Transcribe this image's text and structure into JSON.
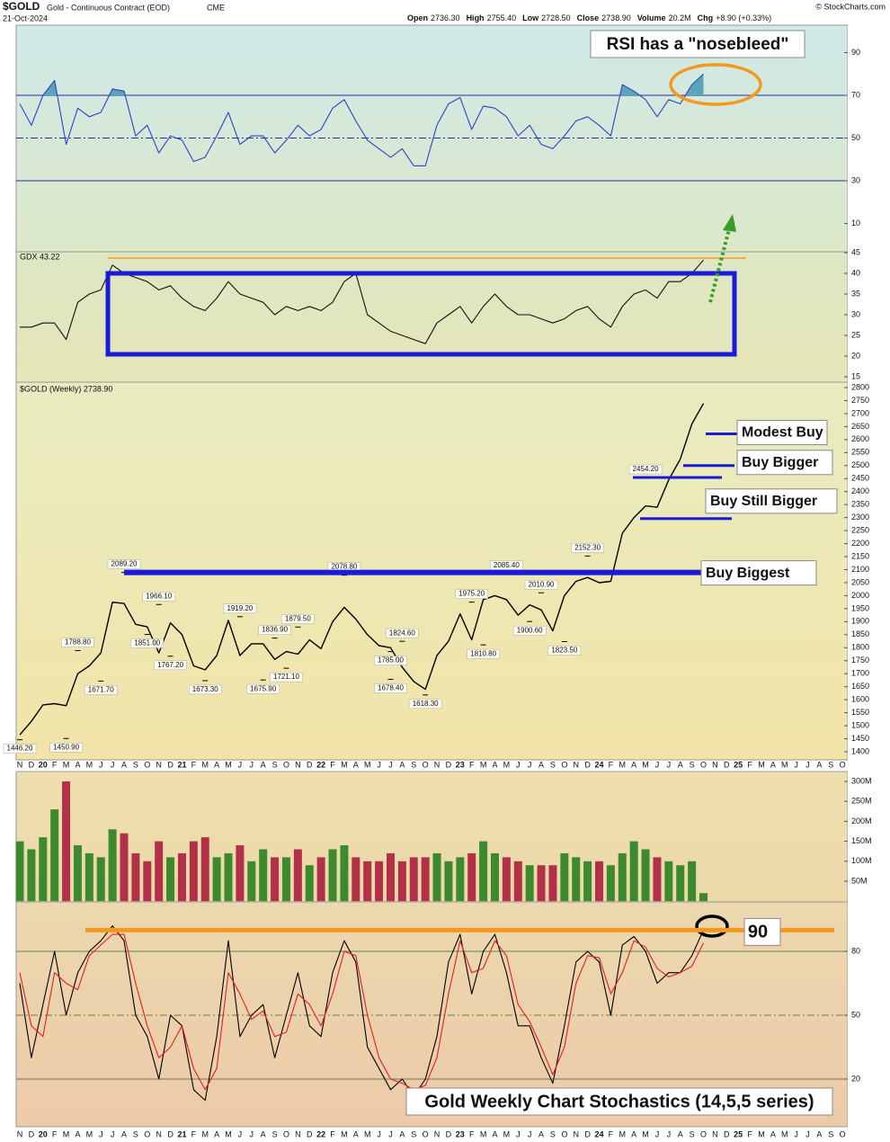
{
  "header": {
    "symbol": "$GOLD",
    "description": "Gold - Continuous Contract (EOD)",
    "exchange": "CME",
    "date": "21-Oct-2024",
    "copyright": "© StockCharts.com",
    "quote": [
      {
        "label": "Open",
        "value": "2736.30"
      },
      {
        "label": "High",
        "value": "2755.40"
      },
      {
        "label": "Low",
        "value": "2728.50"
      },
      {
        "label": "Close",
        "value": "2738.90"
      },
      {
        "label": "Volume",
        "value": "20.2M"
      },
      {
        "label": "Chg",
        "value": "+8.90 (+0.33%)"
      }
    ]
  },
  "chart_data": [
    {
      "type": "line",
      "annotation": "RSI has a \"nosebleed\"",
      "ylim": [
        0,
        100
      ],
      "yticks": [
        10,
        30,
        50,
        70,
        90
      ],
      "levels": [
        30,
        50,
        70
      ],
      "fill_above": 70,
      "fill_color": "#5aa6b8",
      "series": [
        {
          "color": "#3040c8",
          "values": [
            66,
            56,
            70,
            77,
            47,
            64,
            60,
            62,
            73,
            72,
            51,
            56,
            43,
            51,
            49,
            39,
            41,
            51,
            62,
            47,
            51,
            51,
            43,
            49,
            56,
            51,
            54,
            64,
            68,
            58,
            49,
            45,
            41,
            45,
            37,
            37,
            56,
            66,
            69,
            54,
            65,
            64,
            60,
            51,
            56,
            47,
            45,
            51,
            58,
            60,
            56,
            51,
            75,
            72,
            68,
            60,
            68,
            66,
            75,
            80,
            null,
            null,
            null,
            null,
            null,
            null,
            null,
            null,
            null,
            null,
            null,
            null
          ]
        }
      ]
    },
    {
      "type": "line",
      "ylim": [
        15,
        45
      ],
      "yticks": [
        15,
        20,
        25,
        30,
        35,
        40,
        45
      ],
      "series": [
        {
          "name": "GDX 43.22",
          "color": "#111111",
          "values": [
            27,
            27,
            28,
            28,
            24,
            33,
            35,
            36,
            42,
            40,
            39,
            38,
            36,
            37,
            34,
            32,
            31,
            34,
            38,
            35,
            34,
            33,
            30,
            32,
            31,
            32,
            31,
            33,
            38,
            40,
            30,
            28,
            26,
            25,
            24,
            23,
            28,
            30,
            32,
            28,
            32,
            35,
            32,
            30,
            30,
            29,
            28,
            29,
            31,
            32,
            29,
            27,
            32,
            35,
            36,
            34,
            38,
            38,
            40,
            43.22,
            null,
            null,
            null,
            null,
            null,
            null,
            null,
            null,
            null,
            null,
            null,
            null
          ]
        }
      ]
    },
    {
      "type": "line",
      "ylim": [
        1400,
        2800
      ],
      "yticks": [
        1400,
        1450,
        1500,
        1550,
        1600,
        1650,
        1700,
        1750,
        1800,
        1850,
        1900,
        1950,
        2000,
        2050,
        2100,
        2150,
        2200,
        2250,
        2300,
        2350,
        2400,
        2450,
        2500,
        2550,
        2600,
        2650,
        2700,
        2750,
        2800
      ],
      "categories": [
        "N",
        "D",
        "20",
        "F",
        "M",
        "A",
        "M",
        "J",
        "J",
        "A",
        "S",
        "O",
        "N",
        "D",
        "21",
        "F",
        "M",
        "A",
        "M",
        "J",
        "J",
        "A",
        "S",
        "O",
        "N",
        "D",
        "22",
        "F",
        "M",
        "A",
        "M",
        "J",
        "J",
        "A",
        "S",
        "O",
        "N",
        "D",
        "23",
        "F",
        "M",
        "A",
        "M",
        "J",
        "J",
        "A",
        "S",
        "O",
        "N",
        "D",
        "24",
        "F",
        "M",
        "A",
        "M",
        "J",
        "J",
        "A",
        "S",
        "O",
        "N",
        "D",
        "25",
        "F",
        "M",
        "A",
        "M",
        "J",
        "J",
        "A",
        "S",
        "O"
      ],
      "series": [
        {
          "name": "$GOLD (Weekly) 2738.90",
          "color": "#000000",
          "values": [
            1465,
            1517,
            1580,
            1585,
            1577,
            1700,
            1730,
            1780,
            1975,
            1970,
            1890,
            1880,
            1780,
            1895,
            1850,
            1730,
            1715,
            1770,
            1905,
            1770,
            1815,
            1815,
            1755,
            1785,
            1775,
            1830,
            1796,
            1900,
            1955,
            1910,
            1850,
            1808,
            1800,
            1725,
            1670,
            1640,
            1770,
            1825,
            1930,
            1830,
            1985,
            2000,
            1985,
            1925,
            1965,
            1945,
            1865,
            2000,
            2055,
            2070,
            2050,
            2055,
            2240,
            2300,
            2345,
            2340,
            2445,
            2525,
            2660,
            2738.9,
            null,
            null,
            null,
            null,
            null,
            null,
            null,
            null,
            null,
            null,
            null,
            null
          ]
        }
      ],
      "annotations": [
        {
          "x": 0,
          "value": 1446.2,
          "label": "1446.20"
        },
        {
          "x": 4,
          "value": 1450.9,
          "label": "1450.90"
        },
        {
          "x": 5,
          "value": 1788.8,
          "label": "1788.80"
        },
        {
          "x": 7,
          "value": 1671.7,
          "label": "1671.70"
        },
        {
          "x": 9,
          "value": 2089.2,
          "label": "2089.20"
        },
        {
          "x": 11,
          "value": 1851,
          "label": "1851.00"
        },
        {
          "x": 12,
          "value": 1966.1,
          "label": "1966.10"
        },
        {
          "x": 13,
          "value": 1767.2,
          "label": "1767.20"
        },
        {
          "x": 16,
          "value": 1673.3,
          "label": "1673.30"
        },
        {
          "x": 19,
          "value": 1919.2,
          "label": "1919.20"
        },
        {
          "x": 21,
          "value": 1675.9,
          "label": "1675.90"
        },
        {
          "x": 22,
          "value": 1836.9,
          "label": "1836.90"
        },
        {
          "x": 23,
          "value": 1721.1,
          "label": "1721.10"
        },
        {
          "x": 24,
          "value": 1879.5,
          "label": "1879.50"
        },
        {
          "x": 28,
          "value": 2078.8,
          "label": "2078.80"
        },
        {
          "x": 32,
          "value": 1785,
          "label": "1785.00"
        },
        {
          "x": 33,
          "value": 1824.6,
          "label": "1824.60"
        },
        {
          "x": 32,
          "value": 1678.4,
          "label": "1678.40"
        },
        {
          "x": 35,
          "value": 1618.3,
          "label": "1618.30"
        },
        {
          "x": 39,
          "value": 1975.2,
          "label": "1975.20"
        },
        {
          "x": 40,
          "value": 1810.8,
          "label": "1810.80"
        },
        {
          "x": 42,
          "value": 2085.4,
          "label": "2085.40"
        },
        {
          "x": 44,
          "value": 1900.6,
          "label": "1900.60"
        },
        {
          "x": 45,
          "value": 2010.9,
          "label": "2010.90"
        },
        {
          "x": 47,
          "value": 1823.5,
          "label": "1823.50"
        },
        {
          "x": 49,
          "value": 2152.3,
          "label": "2152.30"
        },
        {
          "x": 54,
          "value": 2454.2,
          "label": "2454.20"
        }
      ],
      "levels": [
        {
          "label": "Buy Biggest",
          "value": 2089.2
        },
        {
          "label": "Buy Still Bigger",
          "value": 2296
        },
        {
          "value": 2454.2
        },
        {
          "label": "Buy Bigger",
          "value": 2500
        },
        {
          "label": "Modest Buy",
          "value": 2622
        }
      ]
    },
    {
      "type": "bar",
      "ylim": [
        0,
        300
      ],
      "up_color": "#3d8a2e",
      "down_color": "#b23048",
      "yticks": [
        {
          "value": 50,
          "label": "50M"
        },
        {
          "value": 100,
          "label": "100M"
        },
        {
          "value": 150,
          "label": "150M"
        },
        {
          "value": 200,
          "label": "200M"
        },
        {
          "value": 250,
          "label": "250M"
        },
        {
          "value": 300,
          "label": "300M"
        }
      ],
      "values": [
        150,
        130,
        160,
        230,
        300,
        140,
        120,
        110,
        180,
        170,
        120,
        100,
        150,
        110,
        120,
        150,
        160,
        110,
        120,
        140,
        100,
        130,
        110,
        110,
        130,
        90,
        110,
        130,
        140,
        110,
        100,
        100,
        120,
        100,
        110,
        110,
        120,
        100,
        110,
        120,
        150,
        120,
        110,
        100,
        90,
        90,
        90,
        120,
        110,
        100,
        100,
        90,
        120,
        150,
        130,
        110,
        100,
        90,
        100,
        20.2,
        null,
        null,
        null,
        null,
        null,
        null,
        null,
        null,
        null,
        null,
        null,
        null
      ]
    },
    {
      "type": "line",
      "title": "Gold Weekly Chart Stochastics (14,5,5 series)",
      "ylim": [
        0,
        100
      ],
      "yticks": [
        20,
        50,
        80
      ],
      "grid": true,
      "level": 90,
      "categories": [
        "N",
        "D",
        "20",
        "F",
        "M",
        "A",
        "M",
        "J",
        "J",
        "A",
        "S",
        "O",
        "N",
        "D",
        "21",
        "F",
        "M",
        "A",
        "M",
        "J",
        "J",
        "A",
        "S",
        "O",
        "N",
        "D",
        "22",
        "F",
        "M",
        "A",
        "M",
        "J",
        "J",
        "A",
        "S",
        "O",
        "N",
        "D",
        "23",
        "F",
        "M",
        "A",
        "M",
        "J",
        "J",
        "A",
        "S",
        "O",
        "N",
        "D",
        "24",
        "F",
        "M",
        "A",
        "M",
        "J",
        "J",
        "A",
        "S",
        "O",
        "N",
        "D",
        "25",
        "F",
        "M",
        "A",
        "M",
        "J",
        "J",
        "A",
        "S",
        "O"
      ],
      "series": [
        {
          "color": "#000000",
          "values": [
            65,
            30,
            55,
            80,
            50,
            70,
            80,
            85,
            92,
            85,
            50,
            40,
            20,
            50,
            45,
            15,
            10,
            40,
            85,
            40,
            50,
            55,
            30,
            50,
            70,
            45,
            40,
            70,
            85,
            75,
            35,
            25,
            15,
            20,
            12,
            20,
            40,
            75,
            88,
            60,
            80,
            88,
            70,
            45,
            45,
            30,
            18,
            45,
            75,
            80,
            75,
            50,
            83,
            87,
            80,
            65,
            70,
            70,
            78,
            90,
            null,
            null,
            null,
            null,
            null,
            null,
            null,
            null,
            null,
            null,
            null,
            null
          ]
        },
        {
          "color": "#e02020",
          "values": [
            70,
            45,
            40,
            70,
            65,
            62,
            78,
            83,
            88,
            88,
            65,
            45,
            30,
            35,
            45,
            25,
            15,
            25,
            70,
            60,
            48,
            52,
            40,
            42,
            60,
            55,
            45,
            60,
            80,
            78,
            50,
            30,
            20,
            18,
            15,
            17,
            30,
            60,
            85,
            70,
            72,
            85,
            78,
            55,
            47,
            35,
            22,
            35,
            65,
            78,
            77,
            60,
            70,
            85,
            82,
            72,
            68,
            70,
            73,
            84,
            null,
            null,
            null,
            null,
            null,
            null,
            null,
            null,
            null,
            null,
            null,
            null
          ]
        }
      ]
    }
  ]
}
